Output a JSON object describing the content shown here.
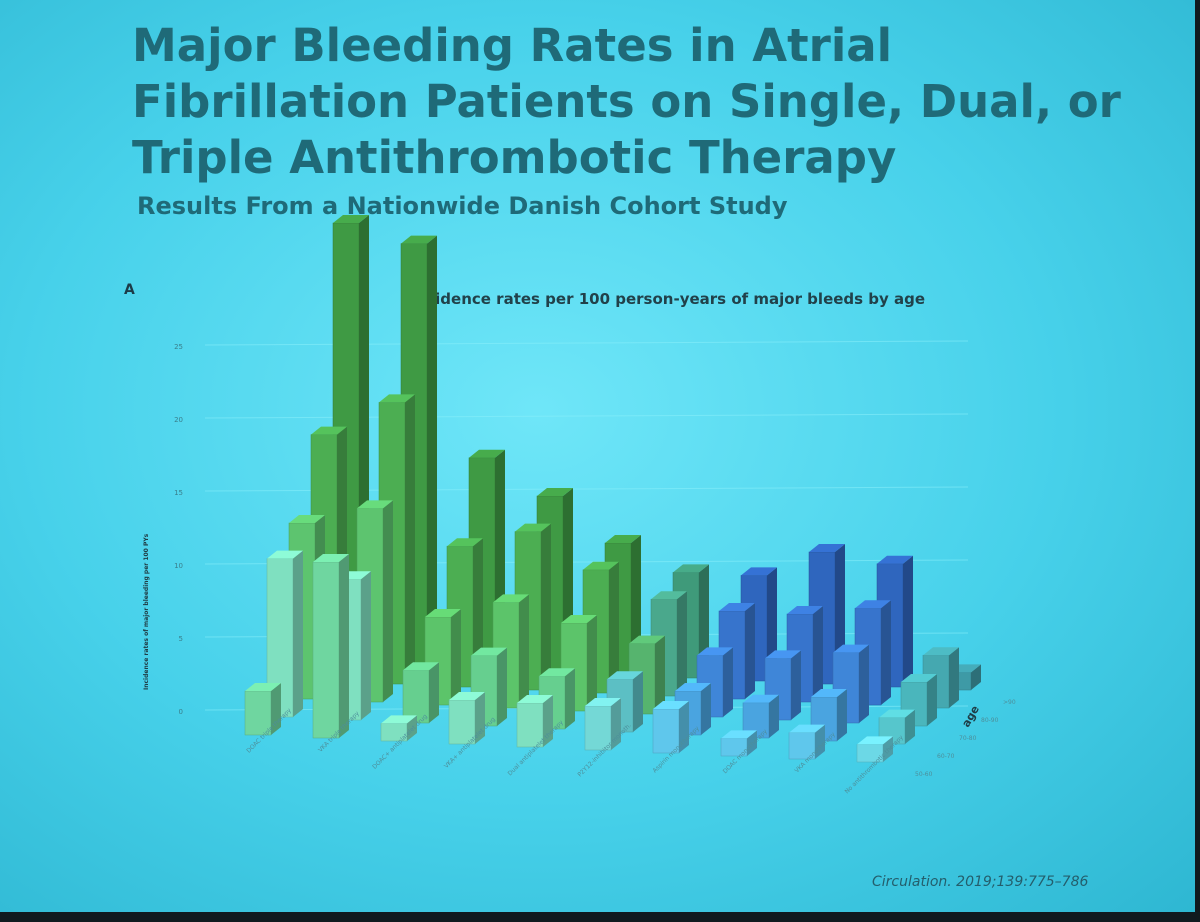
{
  "slide": {
    "title": "Major Bleeding Rates in Atrial Fibrillation Patients on Single, Dual, or Triple Antithrombotic Therapy",
    "subtitle": "Results From a Nationwide Danish Cohort Study",
    "panel_letter": "A",
    "citation": "Circulation. 2019;139:775–786"
  },
  "chart_data": {
    "type": "bar",
    "style": "3d-grouped",
    "title": "Incidence rates per 100 person-years of major bleeds by age",
    "ylabel": "Incidence rates of major bleeding per 100 PYs",
    "zlabel": "age",
    "ylim": [
      0,
      25
    ],
    "yticks": [
      0,
      5,
      10,
      15,
      20,
      25
    ],
    "grid": true,
    "categories": [
      "DOAC triple therapy",
      "VKA triple therapy",
      "DOAC+ antiplatelet drug",
      "VKA+ antiplatelet drug",
      "Dual antiplatelet therapy",
      "P2Y12-inhibitor monoth.",
      "Aspirin monotherapy",
      "DOAC monotherapy",
      "VKA monotherapy",
      "No antithrombotic therapy"
    ],
    "series": [
      {
        "name": "50-60",
        "values": [
          2.5,
          10,
          1,
          2.5,
          2.5,
          2.5,
          2.5,
          1,
          1.5,
          1
        ]
      },
      {
        "name": "60-70",
        "values": [
          9,
          8,
          3,
          4,
          3,
          3,
          2.5,
          2,
          2.5,
          1.5
        ]
      },
      {
        "name": "70-80",
        "values": [
          10,
          11,
          5,
          6,
          5,
          4,
          3.5,
          3.5,
          4,
          2.5
        ]
      },
      {
        "name": "80-90",
        "values": [
          14,
          16,
          8,
          9,
          7,
          5.5,
          5,
          5,
          5.5,
          3
        ]
      },
      {
        "name": ">90",
        "values": [
          25,
          24,
          12,
          10,
          7.5,
          6,
          6,
          7.5,
          7,
          1
        ]
      }
    ],
    "colors": [
      "#7ee8c8",
      "#6ed38a",
      "#5cc0a6",
      "#4a9fb6",
      "#3c7fa4"
    ],
    "bar_colors": {
      "0": [
        "#6fd6a0",
        "#7fe0c0",
        "#5dc46f",
        "#4cae52",
        "#3f9a44"
      ],
      "1": [
        "#6fd6a0",
        "#7fe0c0",
        "#5dc46f",
        "#4cae52",
        "#3f9a44"
      ],
      "2": [
        "#7fe0c0",
        "#66cf8f",
        "#5cc46a",
        "#4cae52",
        "#3f9a44"
      ],
      "3": [
        "#7fe0c0",
        "#66cf8f",
        "#5cc46a",
        "#4cae52",
        "#3f9a44"
      ],
      "4": [
        "#7fe0c0",
        "#66cf8f",
        "#5cc46a",
        "#4cae52",
        "#3f9a44"
      ],
      "5": [
        "#74d8d6",
        "#5cbfc4",
        "#56b46e",
        "#4aa88c",
        "#3f9a7a"
      ],
      "6": [
        "#5fc7ec",
        "#4aa4e0",
        "#3f86d8",
        "#3774cc",
        "#2f66be"
      ],
      "7": [
        "#5fc7ec",
        "#4aa4e0",
        "#3f86d8",
        "#3774cc",
        "#2f66be"
      ],
      "8": [
        "#5fc7ec",
        "#4aa4e0",
        "#3f86d8",
        "#3774cc",
        "#2f66be"
      ],
      "9": [
        "#6cd8e6",
        "#56c6cc",
        "#4ab6bc",
        "#45a8b0",
        "#3e9aa6"
      ]
    }
  }
}
